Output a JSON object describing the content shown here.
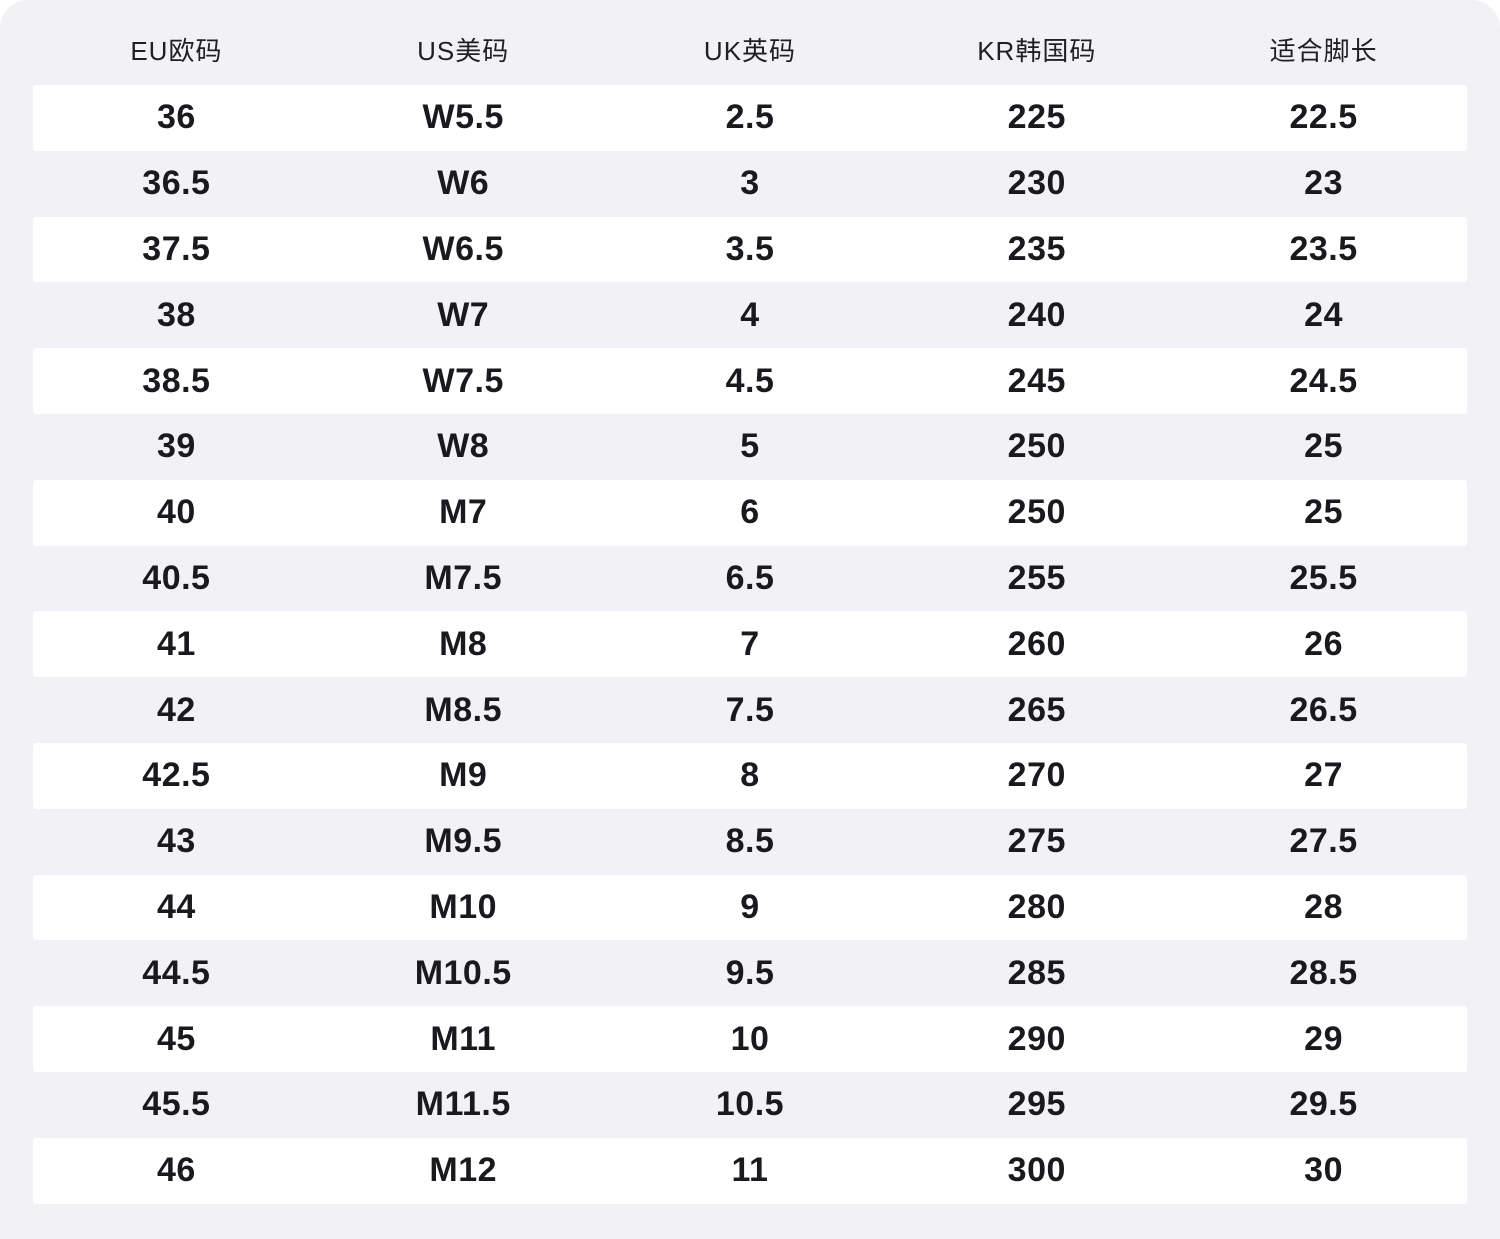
{
  "colors": {
    "page_bg": "#ffffff",
    "card_bg": "#f2f2f6",
    "stripe_bg": "#ffffff",
    "header_text": "#1f1f24",
    "cell_text": "#1a1a1e"
  },
  "chart_data": {
    "type": "table",
    "title": "",
    "columns": [
      "EU欧码",
      "US美码",
      "UK英码",
      "KR韩国码",
      "适合脚长"
    ],
    "rows": [
      [
        "36",
        "W5.5",
        "2.5",
        "225",
        "22.5"
      ],
      [
        "36.5",
        "W6",
        "3",
        "230",
        "23"
      ],
      [
        "37.5",
        "W6.5",
        "3.5",
        "235",
        "23.5"
      ],
      [
        "38",
        "W7",
        "4",
        "240",
        "24"
      ],
      [
        "38.5",
        "W7.5",
        "4.5",
        "245",
        "24.5"
      ],
      [
        "39",
        "W8",
        "5",
        "250",
        "25"
      ],
      [
        "40",
        "M7",
        "6",
        "250",
        "25"
      ],
      [
        "40.5",
        "M7.5",
        "6.5",
        "255",
        "25.5"
      ],
      [
        "41",
        "M8",
        "7",
        "260",
        "26"
      ],
      [
        "42",
        "M8.5",
        "7.5",
        "265",
        "26.5"
      ],
      [
        "42.5",
        "M9",
        "8",
        "270",
        "27"
      ],
      [
        "43",
        "M9.5",
        "8.5",
        "275",
        "27.5"
      ],
      [
        "44",
        "M10",
        "9",
        "280",
        "28"
      ],
      [
        "44.5",
        "M10.5",
        "9.5",
        "285",
        "28.5"
      ],
      [
        "45",
        "M11",
        "10",
        "290",
        "29"
      ],
      [
        "45.5",
        "M11.5",
        "10.5",
        "295",
        "29.5"
      ],
      [
        "46",
        "M12",
        "11",
        "300",
        "30"
      ]
    ],
    "layout": {
      "stripe_pattern": "odd-rows-white",
      "grid": false,
      "legend": false
    }
  }
}
